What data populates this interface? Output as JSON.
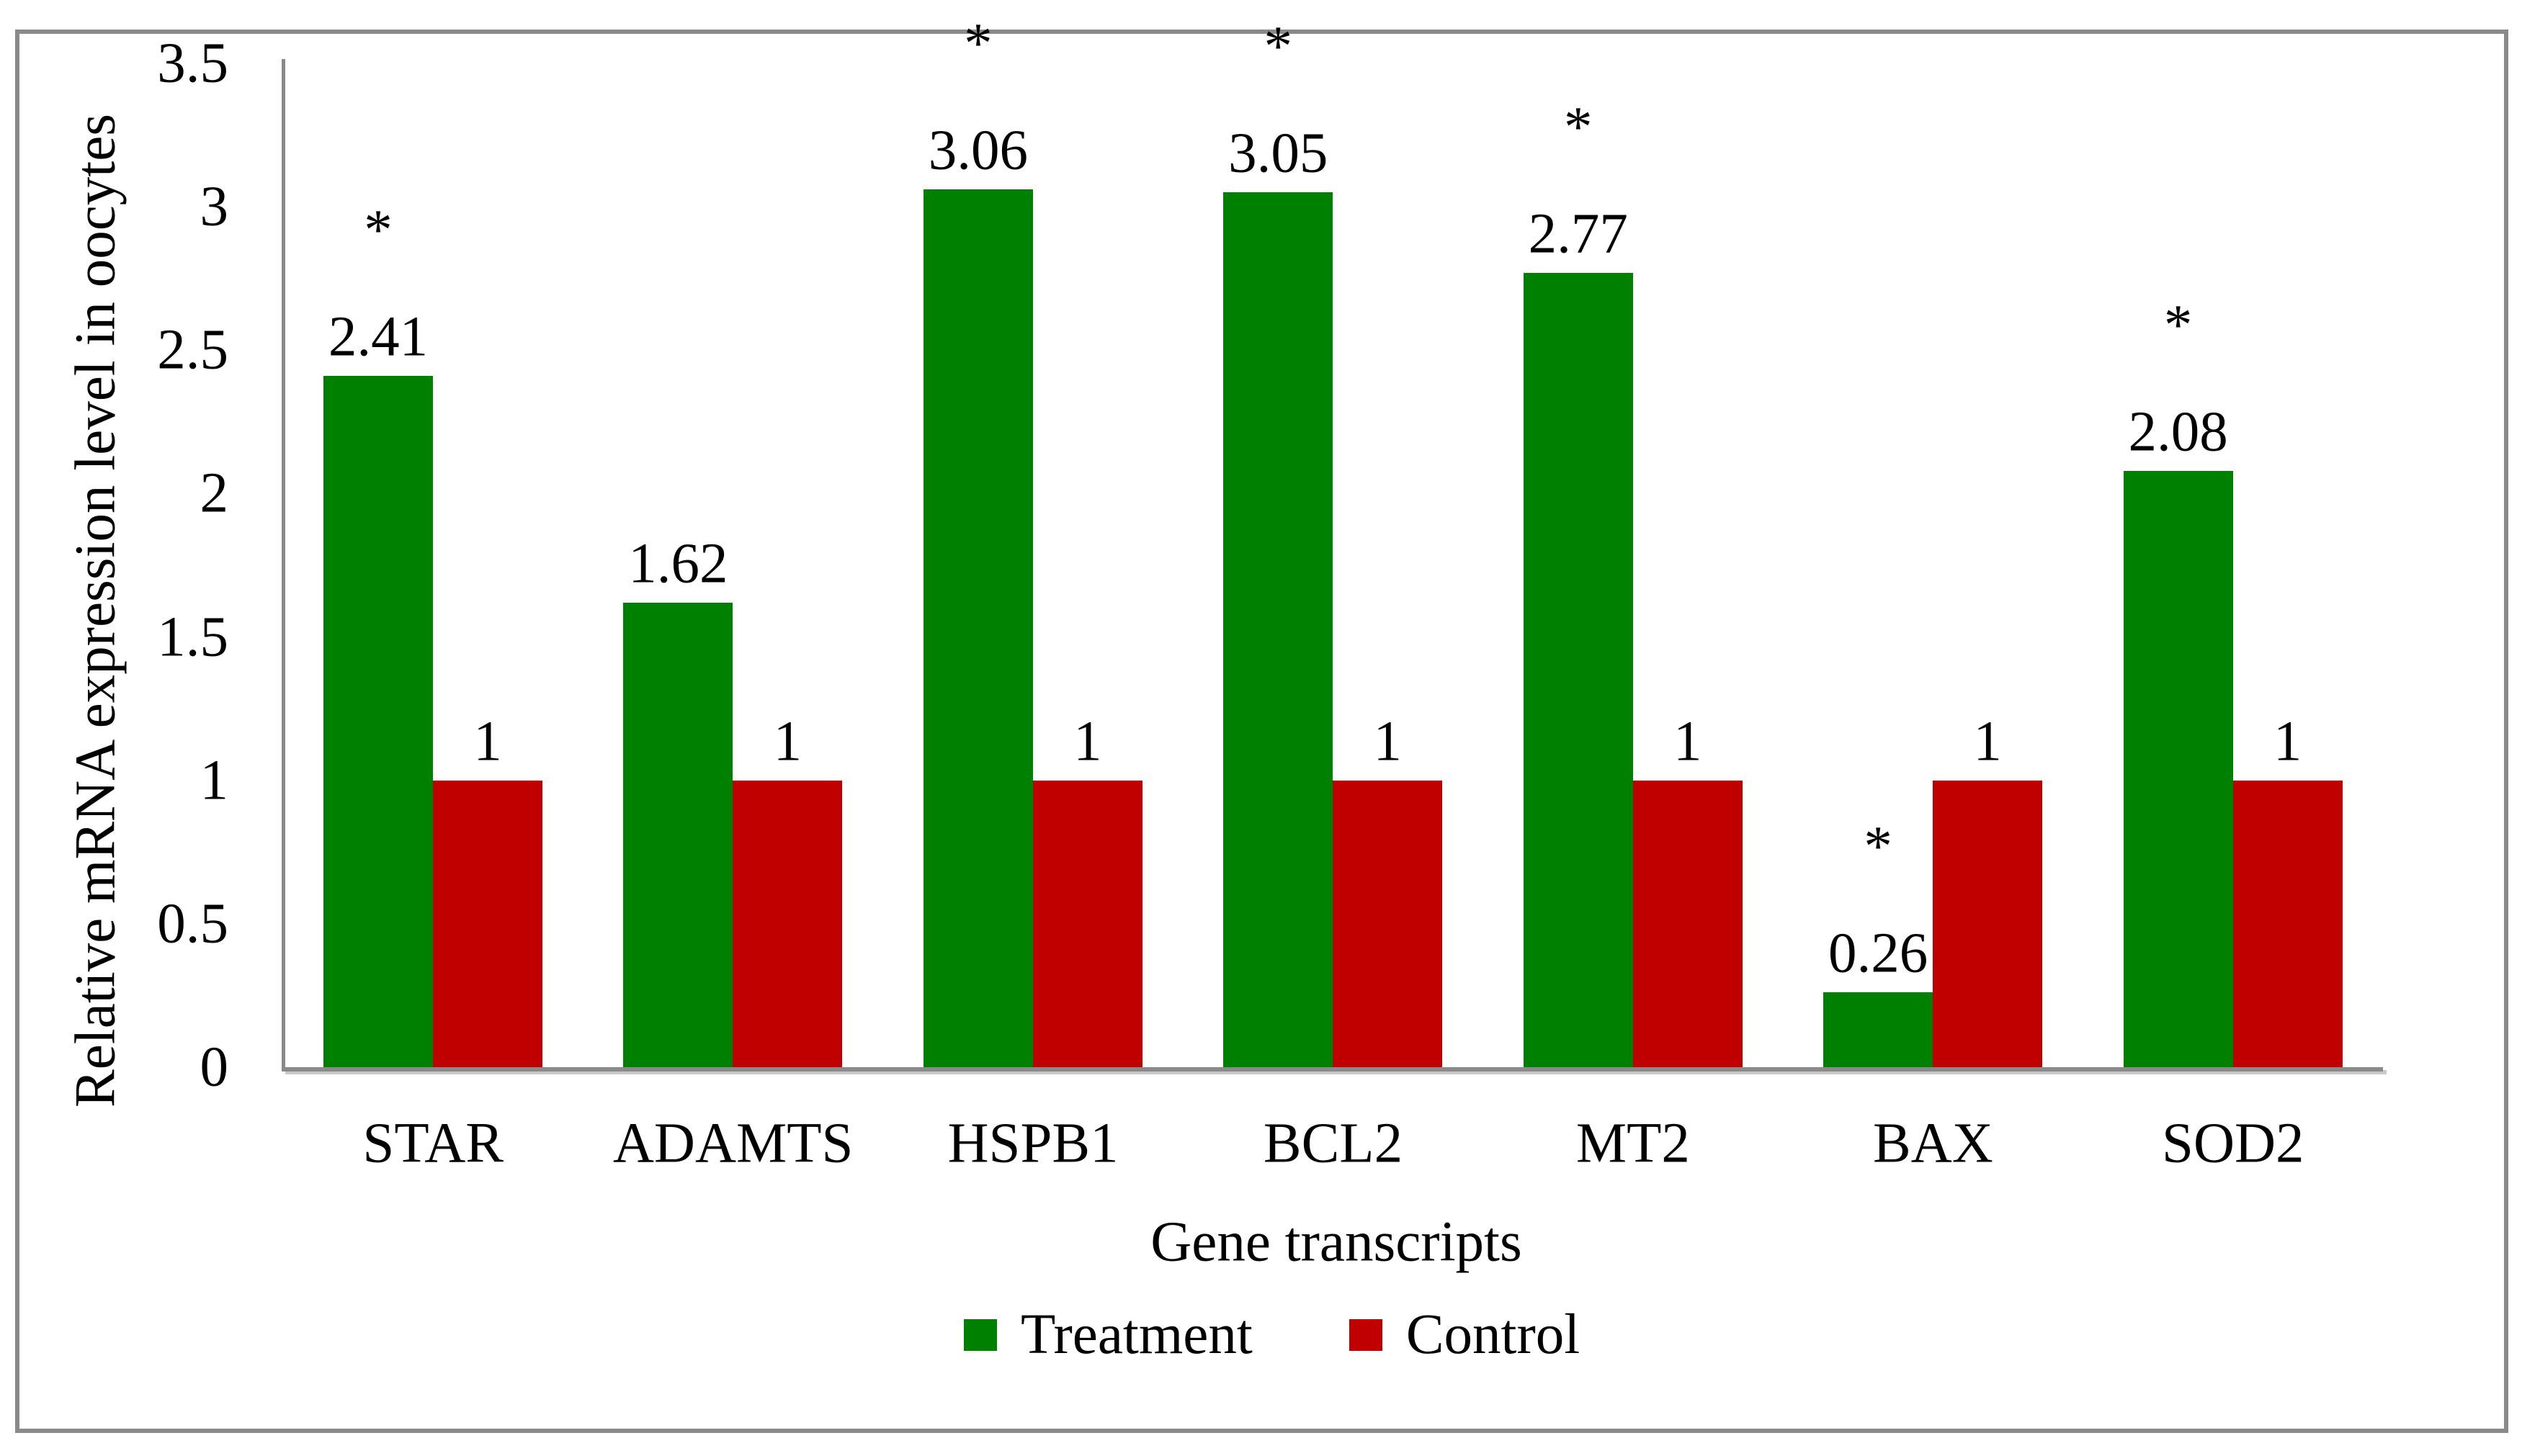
{
  "chart_data": {
    "type": "bar",
    "title": "",
    "xlabel": "Gene transcripts",
    "ylabel": "Relative mRNA expression level in oocytes",
    "categories": [
      "STAR",
      "ADAMTS",
      "HSPB1",
      "BCL2",
      "MT2",
      "BAX",
      "SOD2"
    ],
    "series": [
      {
        "name": "Treatment",
        "color": "#008000",
        "values": [
          2.41,
          1.62,
          3.06,
          3.05,
          2.77,
          0.26,
          2.08
        ],
        "labels": [
          "2.41",
          "1.62",
          "3.06",
          "3.05",
          "2.77",
          "0.26",
          "2.08"
        ],
        "significant": [
          true,
          false,
          true,
          true,
          true,
          true,
          true
        ]
      },
      {
        "name": "Control",
        "color": "#C00000",
        "values": [
          1,
          1,
          1,
          1,
          1,
          1,
          1
        ],
        "labels": [
          "1",
          "1",
          "1",
          "1",
          "1",
          "1",
          "1"
        ],
        "significant": [
          false,
          false,
          false,
          false,
          false,
          false,
          false
        ]
      }
    ],
    "significance_marker": "*",
    "ylim": [
      0,
      3.5
    ],
    "yticks": [
      "0",
      "0.5",
      "1",
      "1.5",
      "2",
      "2.5",
      "3",
      "3.5"
    ],
    "grid": false,
    "legend_position": "bottom",
    "bar_value_labels_shown": true,
    "axis_color": "#8a8a8a",
    "frame_color": "#8a8a8a",
    "text_color": "#000000",
    "background_color": "#ffffff"
  },
  "legend": {
    "items": [
      {
        "label": "Treatment",
        "color": "#008000"
      },
      {
        "label": "Control",
        "color": "#C00000"
      }
    ]
  }
}
